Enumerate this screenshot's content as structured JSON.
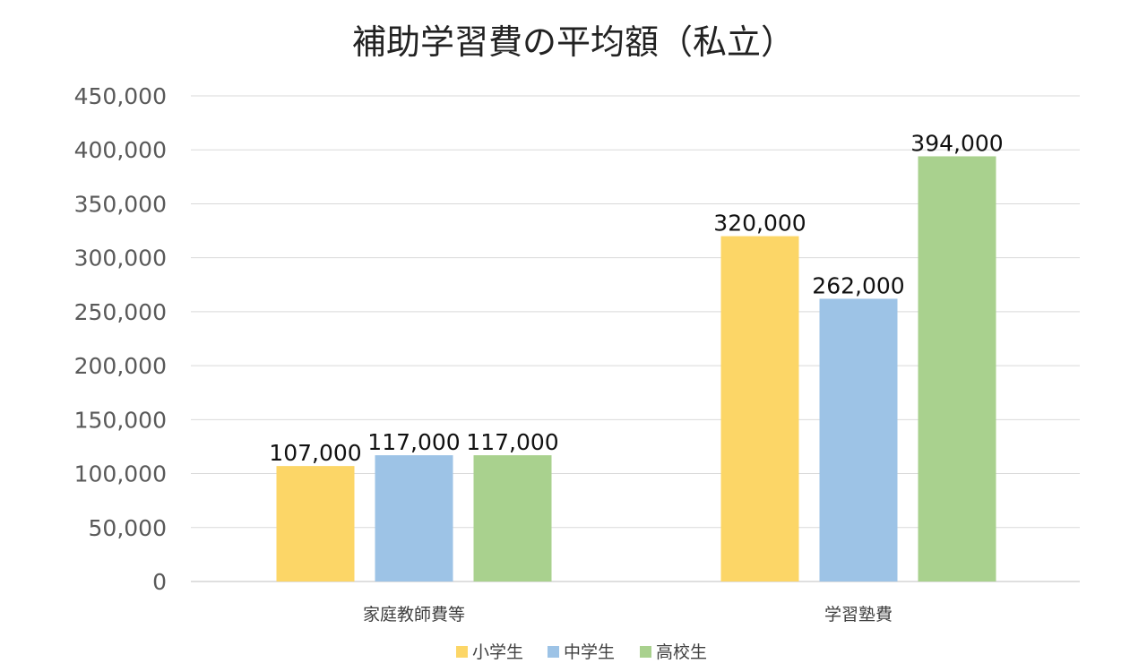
{
  "chart_data": {
    "type": "bar",
    "title": "補助学習費の平均額（私立）",
    "categories": [
      "家庭教師費等",
      "学習塾費"
    ],
    "series": [
      {
        "name": "小学生",
        "values": [
          107000,
          320000
        ],
        "color": "#FCD667"
      },
      {
        "name": "中学生",
        "values": [
          117000,
          262000
        ],
        "color": "#9DC3E6"
      },
      {
        "name": "高校生",
        "values": [
          117000,
          394000
        ],
        "color": "#A9D18E"
      }
    ],
    "value_labels": [
      [
        "107,000",
        "320,000"
      ],
      [
        "117,000",
        "262,000"
      ],
      [
        "117,000",
        "394,000"
      ]
    ],
    "yticks": [
      0,
      50000,
      100000,
      150000,
      200000,
      250000,
      300000,
      350000,
      400000,
      450000
    ],
    "ytick_labels": [
      "0",
      "50,000",
      "100,000",
      "150,000",
      "200,000",
      "250,000",
      "300,000",
      "350,000",
      "400,000",
      "450,000"
    ],
    "ylim": [
      0,
      450000
    ],
    "xlabel": "",
    "ylabel": "",
    "grid": true,
    "legend_position": "bottom"
  }
}
